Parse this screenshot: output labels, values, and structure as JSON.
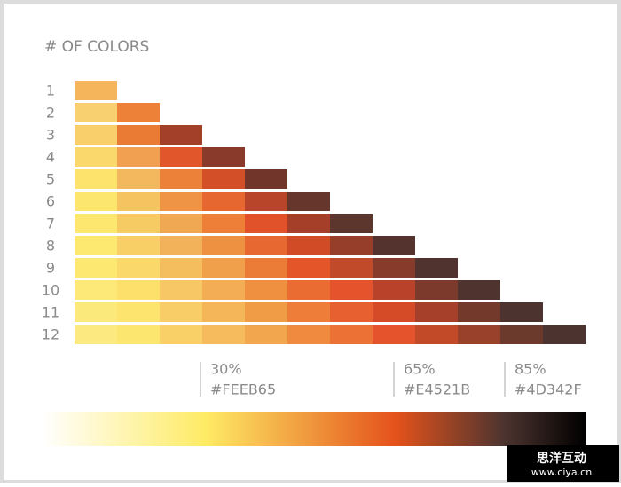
{
  "title": "# OF COLORS",
  "rows": [
    {
      "label": "1",
      "colors": [
        "#f5b55a"
      ]
    },
    {
      "label": "2",
      "colors": [
        "#f8d070",
        "#ec8137"
      ]
    },
    {
      "label": "3",
      "colors": [
        "#f8cf6a",
        "#ea7b35",
        "#a3402a"
      ]
    },
    {
      "label": "4",
      "colors": [
        "#fad86c",
        "#f0a050",
        "#e2562b",
        "#8a3a2a"
      ]
    },
    {
      "label": "5",
      "colors": [
        "#fde36b",
        "#f3b75e",
        "#ec8139",
        "#d24f28",
        "#72352a"
      ]
    },
    {
      "label": "6",
      "colors": [
        "#fde66d",
        "#f5c360",
        "#ee9444",
        "#e66830",
        "#b8442a",
        "#66362c"
      ]
    },
    {
      "label": "7",
      "colors": [
        "#fde76e",
        "#f7cb64",
        "#f1a852",
        "#ed7f38",
        "#e2522a",
        "#a53f2a",
        "#5c352d"
      ]
    },
    {
      "label": "8",
      "colors": [
        "#fde870",
        "#f8cf66",
        "#f2b25a",
        "#ee9140",
        "#e86831",
        "#d24b27",
        "#973e2a",
        "#54332e"
      ]
    },
    {
      "label": "9",
      "colors": [
        "#fde872",
        "#fad86a",
        "#f4bd5e",
        "#f0a04b",
        "#eb7c37",
        "#e4562a",
        "#c04a2a",
        "#873b2b",
        "#50332e"
      ]
    },
    {
      "label": "10",
      "colors": [
        "#fce977",
        "#fde06c",
        "#f6c764",
        "#f3ad55",
        "#ee9040",
        "#ea6c33",
        "#e4532b",
        "#b8432a",
        "#7c3a2c",
        "#4e332f"
      ]
    },
    {
      "label": "11",
      "colors": [
        "#fce97b",
        "#fde46e",
        "#f8cc66",
        "#f4b659",
        "#f09b46",
        "#ed7d38",
        "#e6612f",
        "#d54b28",
        "#a6402b",
        "#733a2c",
        "#4c332f"
      ]
    },
    {
      "label": "12",
      "colors": [
        "#fcea80",
        "#fde66f",
        "#f9d068",
        "#f5bb5c",
        "#f2a64d",
        "#ef8a3e",
        "#eb7135",
        "#e4532b",
        "#c24a29",
        "#99412a",
        "#6c392d",
        "#4c3330"
      ]
    }
  ],
  "stops": [
    {
      "position": "30%",
      "color": "#FEEB65"
    },
    {
      "position": "65%",
      "color": "#E4521B"
    },
    {
      "position": "85%",
      "color": "#4D342F"
    }
  ],
  "watermark": {
    "title": "思洋互动",
    "url": "www.ciya.cn"
  }
}
